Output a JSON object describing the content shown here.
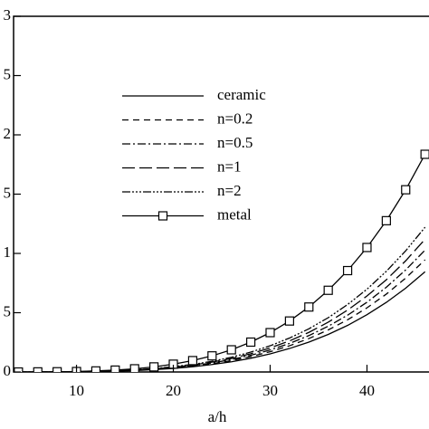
{
  "chart_data": {
    "type": "line",
    "xlabel": "a/h",
    "x": [
      4,
      6,
      8,
      10,
      12,
      14,
      16,
      18,
      20,
      22,
      24,
      26,
      28,
      30,
      32,
      34,
      36,
      38,
      40,
      42,
      44,
      46
    ],
    "series": [
      {
        "name": "ceramic",
        "color": "#000000",
        "dash": "none",
        "values": [
          0,
          0,
          0.001,
          0.002,
          0.004,
          0.007,
          0.012,
          0.02,
          0.03,
          0.044,
          0.063,
          0.086,
          0.116,
          0.153,
          0.198,
          0.252,
          0.317,
          0.393,
          0.483,
          0.587,
          0.707,
          0.845
        ]
      },
      {
        "name": "n=0.2",
        "color": "#000000",
        "dash": "7,5",
        "values": [
          0,
          0,
          0.001,
          0.002,
          0.005,
          0.008,
          0.014,
          0.022,
          0.034,
          0.049,
          0.07,
          0.096,
          0.13,
          0.171,
          0.221,
          0.282,
          0.355,
          0.44,
          0.541,
          0.657,
          0.792,
          0.946
        ]
      },
      {
        "name": "n=0.5",
        "color": "#000000",
        "dash": "9,3,2,3",
        "values": [
          0,
          0,
          0.001,
          0.002,
          0.005,
          0.009,
          0.015,
          0.024,
          0.037,
          0.054,
          0.076,
          0.105,
          0.141,
          0.186,
          0.241,
          0.307,
          0.386,
          0.479,
          0.588,
          0.715,
          0.861,
          1.028
        ]
      },
      {
        "name": "n=1",
        "color": "#000000",
        "dash": "14,5",
        "values": [
          0,
          0,
          0.001,
          0.002,
          0.005,
          0.01,
          0.016,
          0.026,
          0.04,
          0.059,
          0.083,
          0.114,
          0.154,
          0.203,
          0.262,
          0.334,
          0.42,
          0.522,
          0.641,
          0.778,
          0.938,
          1.12
        ]
      },
      {
        "name": "n=2",
        "color": "#000000",
        "dash": "9,2,2,2,2,2,2,2",
        "values": [
          0,
          0.001,
          0.001,
          0.003,
          0.006,
          0.011,
          0.018,
          0.029,
          0.044,
          0.064,
          0.09,
          0.124,
          0.168,
          0.221,
          0.286,
          0.364,
          0.458,
          0.569,
          0.698,
          0.849,
          1.022,
          1.221
        ]
      },
      {
        "name": "metal",
        "color": "#000000",
        "dash": "none",
        "marker": "square",
        "values": [
          0,
          0.001,
          0.002,
          0.004,
          0.009,
          0.016,
          0.027,
          0.043,
          0.066,
          0.096,
          0.136,
          0.187,
          0.252,
          0.332,
          0.43,
          0.548,
          0.689,
          0.855,
          1.05,
          1.276,
          1.537,
          1.836
        ]
      }
    ],
    "xlim": [
      3.5,
      46.5
    ],
    "xticks": [
      10,
      20,
      30,
      40
    ],
    "ylim": [
      0,
      3
    ],
    "yticks": [
      0,
      {
        "value": 0.5,
        "label": "5"
      },
      1,
      {
        "value": 1.5,
        "label": "5"
      },
      2,
      {
        "value": 2.5,
        "label": "5"
      },
      3
    ]
  }
}
